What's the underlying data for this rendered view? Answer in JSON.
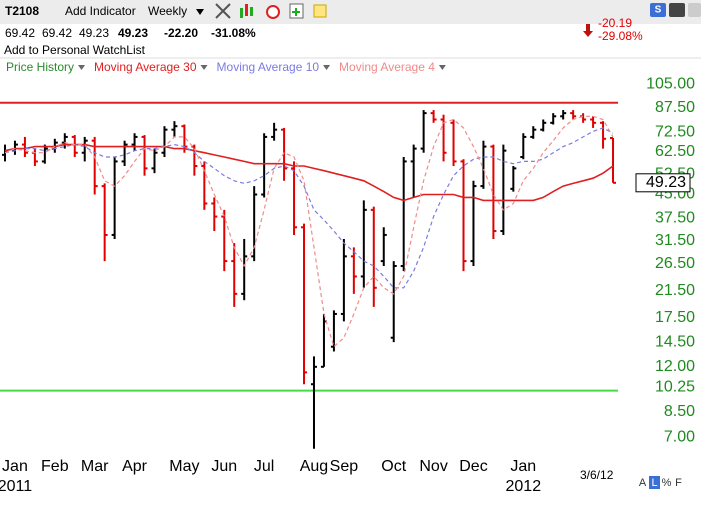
{
  "toolbar": {
    "symbol": "T2108",
    "add_indicator": "Add Indicator",
    "period": "Weekly",
    "watchlist": "Add to Personal WatchList"
  },
  "quote": {
    "open": "69.42",
    "high": "69.42",
    "low": "49.23",
    "last": "49.23",
    "change": "-22.20",
    "change_pct": "-31.08%",
    "side_change": "-20.19",
    "side_change_pct": "-29.08%"
  },
  "footer": {
    "date": "3/6/12",
    "buttons": [
      "A",
      "L",
      "%",
      "F"
    ]
  },
  "chart_data": {
    "type": "ohlc",
    "log_scale": true,
    "grid": false,
    "categories": [
      null,
      "Jan",
      null,
      null,
      null,
      "Feb",
      null,
      null,
      null,
      "Mar",
      null,
      null,
      null,
      "Apr",
      null,
      null,
      null,
      null,
      "May",
      null,
      null,
      null,
      "Jun",
      null,
      null,
      null,
      "Jul",
      null,
      null,
      null,
      null,
      "Aug",
      null,
      null,
      "Sep",
      null,
      null,
      null,
      null,
      "Oct",
      null,
      null,
      null,
      "Nov",
      null,
      null,
      null,
      "Dec",
      null,
      null,
      null,
      null,
      "Jan",
      null,
      null,
      null,
      null,
      null,
      null,
      null,
      null,
      null
    ],
    "year_labels": [
      null,
      "2011",
      null,
      null,
      null,
      null,
      null,
      null,
      null,
      null,
      null,
      null,
      null,
      null,
      null,
      null,
      null,
      null,
      null,
      null,
      null,
      null,
      null,
      null,
      null,
      null,
      null,
      null,
      null,
      null,
      null,
      null,
      null,
      null,
      null,
      null,
      null,
      null,
      null,
      null,
      null,
      null,
      null,
      null,
      null,
      null,
      null,
      null,
      null,
      null,
      null,
      null,
      "2012",
      null,
      null,
      null,
      null,
      null,
      null,
      null,
      null,
      null
    ],
    "series": [
      {
        "name": "Price History",
        "color": "#2a8a2a",
        "up_color": "#000000",
        "down_color": "#e00000",
        "open": [
          61,
          63,
          66,
          62,
          58,
          64,
          67,
          70,
          62,
          68,
          48,
          33,
          58,
          66,
          70,
          55,
          62,
          74,
          76,
          65,
          56,
          42,
          38,
          27,
          21,
          28,
          45,
          70,
          74,
          55,
          35,
          10.5,
          12,
          14,
          18,
          28,
          24,
          40,
          27,
          15,
          26,
          58,
          64,
          84,
          80,
          78,
          58,
          27,
          48,
          65,
          34,
          47,
          60,
          70,
          74,
          78,
          82,
          84,
          82,
          80,
          78,
          69.42
        ],
        "high": [
          66,
          68,
          70,
          64,
          66,
          69,
          72,
          71,
          70,
          70,
          49,
          60,
          68,
          72,
          71,
          64,
          76,
          79,
          77,
          66,
          58,
          44,
          40,
          31,
          32,
          48,
          72,
          78,
          75,
          58,
          36,
          13,
          18,
          18.5,
          32,
          30,
          43,
          41,
          35,
          27,
          60,
          66,
          86,
          86,
          83,
          80,
          59,
          50,
          68,
          66,
          66,
          56,
          72,
          76,
          80,
          84,
          86,
          86,
          84,
          82,
          79,
          69.42
        ],
        "low": [
          58,
          61,
          60,
          56,
          57,
          62,
          64,
          60,
          58,
          45,
          27,
          32,
          56,
          63,
          52,
          53,
          60,
          70,
          62,
          52,
          40,
          34,
          25,
          19,
          20,
          27,
          44,
          68,
          50,
          33,
          10.5,
          6.4,
          12,
          13.5,
          17,
          21,
          22,
          19,
          26,
          14.5,
          25,
          44,
          62,
          78,
          58,
          56,
          25,
          26,
          47,
          32,
          33,
          46,
          59,
          69,
          73,
          77,
          80,
          80,
          78,
          75,
          64,
          49.23
        ],
        "close": [
          63,
          66,
          62,
          58,
          64,
          67,
          70,
          62,
          68,
          48,
          33,
          58,
          66,
          70,
          55,
          62,
          74,
          76,
          65,
          56,
          42,
          38,
          27,
          21,
          28,
          45,
          70,
          74,
          55,
          35,
          11.5,
          12,
          17,
          18,
          28,
          24,
          40,
          22,
          33,
          26,
          58,
          64,
          84,
          80,
          62,
          58,
          27,
          48,
          65,
          34,
          63,
          55,
          70,
          74,
          78,
          82,
          84,
          82,
          80,
          78,
          69,
          49.23
        ]
      },
      {
        "name": "Moving Average 30",
        "color": "#e02020",
        "dash": false,
        "values": [
          63,
          64,
          64,
          65,
          65,
          65,
          66,
          66,
          66,
          65,
          65,
          65,
          65,
          65,
          65,
          65,
          65,
          64,
          64,
          63,
          62,
          61,
          60,
          59,
          58,
          57,
          57,
          57,
          57,
          56,
          56,
          55,
          54,
          53,
          52,
          51,
          50,
          48,
          46,
          44,
          43,
          44,
          45,
          45,
          45,
          45,
          44,
          44,
          43,
          43,
          43,
          43,
          43,
          43,
          44,
          46,
          48,
          49,
          50,
          51,
          53,
          56
        ]
      },
      {
        "name": "Moving Average 10",
        "color": "#7b7be0",
        "dash": true,
        "values": [
          62,
          63,
          64,
          64,
          63,
          64,
          65,
          66,
          65,
          62,
          60,
          60,
          61,
          63,
          64,
          64,
          65,
          66,
          65,
          62,
          58,
          55,
          52,
          50,
          49,
          50,
          52,
          55,
          56,
          54,
          48,
          40,
          37,
          34,
          31,
          29,
          27,
          26,
          24,
          22,
          22,
          25,
          30,
          38,
          45,
          52,
          56,
          59,
          60,
          60,
          58,
          57,
          58,
          58,
          59,
          62,
          65,
          67,
          70,
          73,
          75,
          72
        ]
      },
      {
        "name": "Moving Average 4",
        "color": "#f08a8a",
        "dash": true,
        "values": [
          62,
          64,
          63,
          62,
          62,
          65,
          67,
          66,
          66,
          60,
          50,
          48,
          52,
          58,
          64,
          63,
          65,
          70,
          70,
          64,
          54,
          45,
          38,
          30,
          26,
          30,
          40,
          55,
          62,
          60,
          50,
          30,
          18,
          14,
          15,
          18,
          22,
          24,
          22,
          21,
          24,
          35,
          50,
          65,
          78,
          80,
          75,
          65,
          55,
          45,
          40,
          42,
          50,
          55,
          62,
          68,
          75,
          80,
          82,
          82,
          80,
          70
        ]
      }
    ],
    "hlines": [
      {
        "value": 91,
        "color": "#e02020"
      },
      {
        "value": 10,
        "color": "#44dd44"
      }
    ],
    "ylim": [
      6.1,
      110
    ],
    "yticks": [
      {
        "value": 105,
        "label": "105.00"
      },
      {
        "value": 87.5,
        "label": "87.50"
      },
      {
        "value": 72.5,
        "label": "72.50"
      },
      {
        "value": 62.5,
        "label": "62.50"
      },
      {
        "value": 52.5,
        "label": "52.50"
      },
      {
        "value": 45,
        "label": "45.00"
      },
      {
        "value": 37.5,
        "label": "37.50"
      },
      {
        "value": 31.5,
        "label": "31.50"
      },
      {
        "value": 26.5,
        "label": "26.50"
      },
      {
        "value": 21.5,
        "label": "21.50"
      },
      {
        "value": 17.5,
        "label": "17.50"
      },
      {
        "value": 14.5,
        "label": "14.50"
      },
      {
        "value": 12,
        "label": "12.00"
      },
      {
        "value": 10.25,
        "label": "10.25"
      },
      {
        "value": 8.5,
        "label": "8.50"
      },
      {
        "value": 7,
        "label": "7.00"
      }
    ],
    "ytick_color": "#1f8a1f"
  }
}
